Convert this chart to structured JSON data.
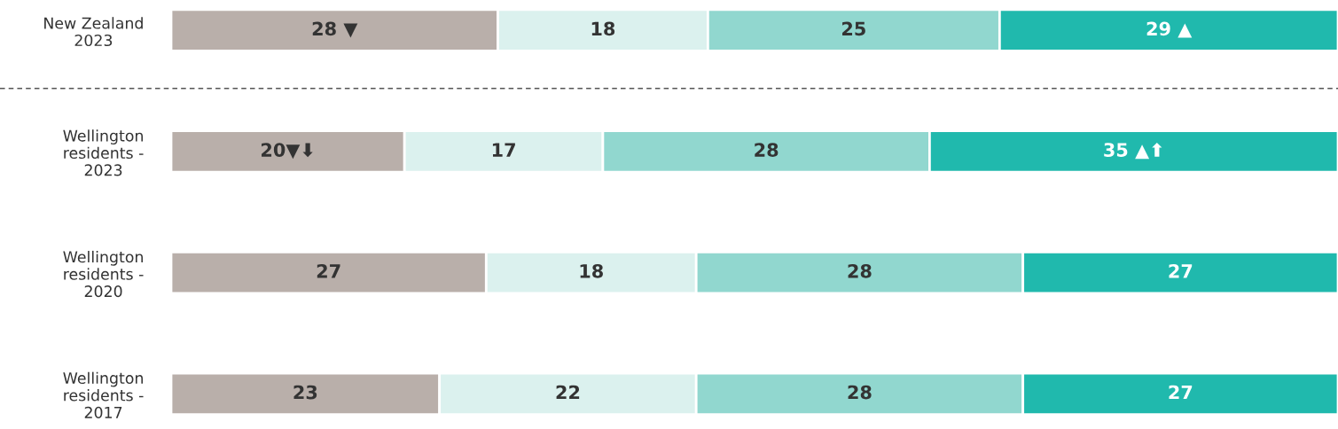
{
  "chart_data": {
    "type": "bar",
    "orientation": "horizontal",
    "stacked": true,
    "tick_labels": "y",
    "categories": [
      "New Zealand\n2023",
      "Wellington\nresidents -\n2023",
      "Wellington\nresidents -\n2020",
      "Wellington\nresidents -\n2017"
    ],
    "series": [
      {
        "color": "#b9afaa",
        "values": [
          28,
          20,
          27,
          23
        ],
        "value_labels": [
          "28 ▼",
          "20▼⬇",
          "27",
          "23"
        ]
      },
      {
        "color": "#dbf1ee",
        "values": [
          18,
          17,
          18,
          22
        ],
        "value_labels": [
          "18",
          "17",
          "18",
          "22"
        ]
      },
      {
        "color": "#91d7cf",
        "values": [
          25,
          28,
          28,
          28
        ],
        "value_labels": [
          "25",
          "28",
          "28",
          "28"
        ]
      },
      {
        "color": "#20b9ad",
        "values": [
          29,
          35,
          27,
          27
        ],
        "value_labels": [
          "29 ▲",
          "35 ▲⬆",
          "27",
          "27"
        ]
      }
    ]
  }
}
